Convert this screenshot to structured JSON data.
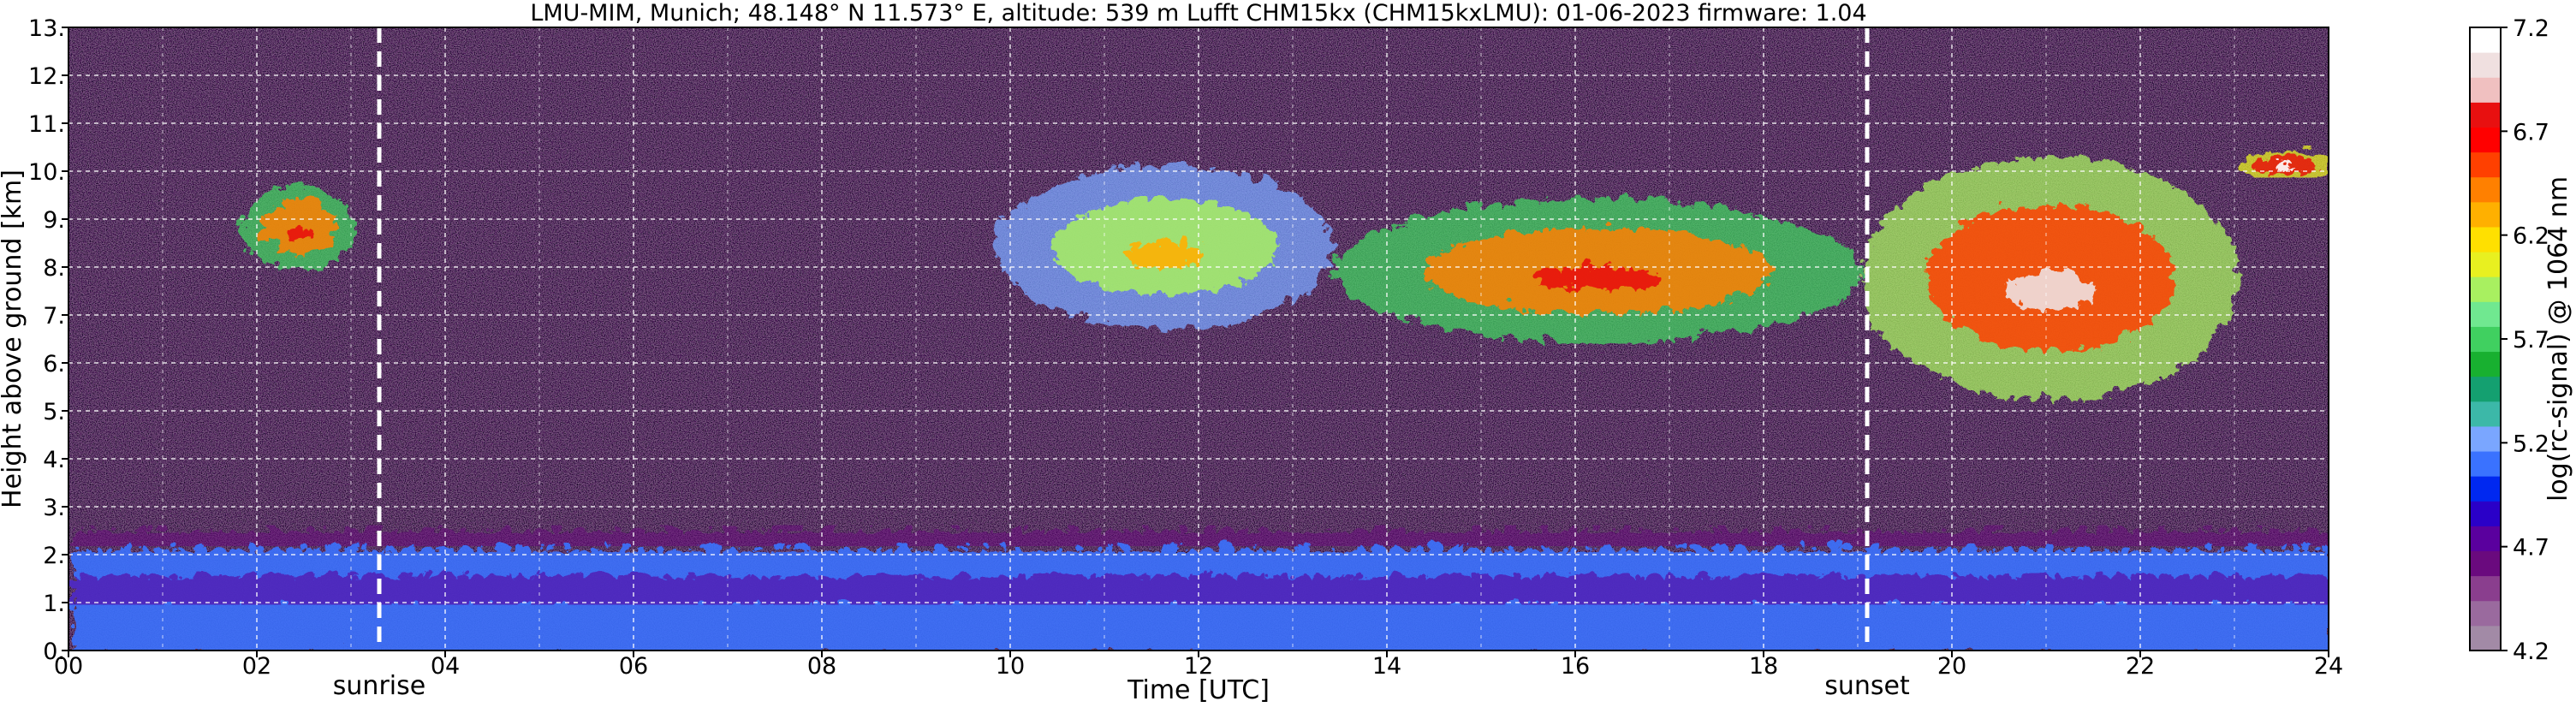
{
  "chart_data": {
    "type": "heatmap",
    "title": "LMU-MIM, Munich; 48.148° N 11.573° E, altitude: 539 m    Lufft CHM15kx (CHM15kxLMU): 01-06-2023    firmware: 1.04",
    "xlabel": "Time [UTC]",
    "ylabel": "Height above ground [km]",
    "xlim": [
      0,
      24
    ],
    "ylim": [
      0,
      13
    ],
    "x_ticks": [
      0,
      2,
      4,
      6,
      8,
      10,
      12,
      14,
      16,
      18,
      20,
      22,
      24
    ],
    "x_tick_labels": [
      "00",
      "02",
      "04",
      "06",
      "08",
      "10",
      "12",
      "14",
      "16",
      "18",
      "20",
      "22",
      "24"
    ],
    "y_ticks": [
      0,
      1,
      2,
      3,
      4,
      5,
      6,
      7,
      8,
      9,
      10,
      11,
      12,
      13
    ],
    "y_tick_labels": [
      "0.",
      "1.",
      "2.",
      "3.",
      "4.",
      "5.",
      "6.",
      "7.",
      "8.",
      "9.",
      "10.",
      "11.",
      "12.",
      "13."
    ],
    "grid": true,
    "colorbar": {
      "label": "log(rc-signal) @ 1064 nm",
      "range": [
        4.2,
        7.2
      ],
      "ticks": [
        4.2,
        4.7,
        5.2,
        5.7,
        6.2,
        6.7,
        7.2
      ],
      "tick_labels": [
        "4.2",
        "4.7",
        "5.2",
        "5.7",
        "6.2",
        "6.7",
        "7.2"
      ],
      "colors": [
        "#a28aa6",
        "#9a6a9e",
        "#8a3e8e",
        "#6a0a7e",
        "#5a009e",
        "#2a00c8",
        "#0028f0",
        "#3a72ff",
        "#7aa6ff",
        "#3cb8a8",
        "#14a070",
        "#18b030",
        "#40d060",
        "#70e890",
        "#a8f060",
        "#e8f020",
        "#ffe000",
        "#ffb000",
        "#ff8000",
        "#ff4000",
        "#ff0000",
        "#e81010",
        "#f0c0c0",
        "#f0e0e0",
        "#ffffff"
      ]
    },
    "annotations": [
      {
        "text": "sunrise",
        "x": 3.3
      },
      {
        "text": "sunset",
        "x": 19.1
      }
    ],
    "cloud_layers": [
      {
        "x_start": 1.8,
        "x_end": 3.0,
        "y_low": 8.0,
        "y_high": 9.8,
        "intensity": 6.4
      },
      {
        "x_start": 9.8,
        "x_end": 13.4,
        "y_low": 6.8,
        "y_high": 10.2,
        "intensity": 5.9
      },
      {
        "x_start": 13.4,
        "x_end": 19.0,
        "y_low": 6.5,
        "y_high": 9.5,
        "intensity": 6.4
      },
      {
        "x_start": 19.0,
        "x_end": 23.0,
        "y_low": 5.3,
        "y_high": 10.4,
        "intensity": 6.6
      },
      {
        "x_start": 23.0,
        "x_end": 24.0,
        "y_low": 9.9,
        "y_high": 10.5,
        "intensity": 6.8
      }
    ],
    "boundary_layer": [
      {
        "x_start": 0,
        "x_end": 24,
        "y_low": 0.0,
        "y_high": 2.2,
        "intensity": 5.1
      }
    ]
  }
}
